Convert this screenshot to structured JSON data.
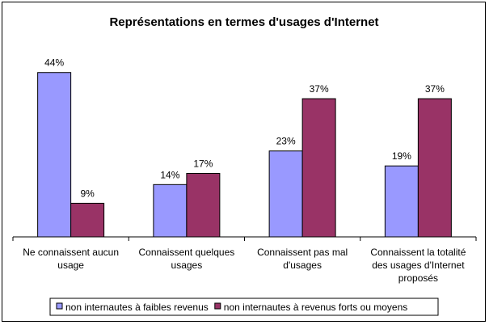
{
  "chart_data": {
    "type": "bar",
    "title": "Représentations en termes d'usages d'Internet",
    "xlabel": "",
    "ylabel": "",
    "ylim": [
      0,
      50
    ],
    "grid": false,
    "legend_position": "bottom",
    "value_format": "percent",
    "categories": [
      [
        "Ne connaissent aucun",
        "usage"
      ],
      [
        "Connaissent quelques",
        "usages"
      ],
      [
        "Connaissent pas mal",
        "d'usages"
      ],
      [
        "Connaissent la totalité",
        "des usages d'Internet",
        "proposés"
      ]
    ],
    "series": [
      {
        "name": "non internautes à faibles revenus",
        "color": "#9999ff",
        "values": [
          44,
          14,
          23,
          19
        ]
      },
      {
        "name": "non internautes à revenus forts ou moyens",
        "color": "#993366",
        "values": [
          9,
          17,
          37,
          37
        ]
      }
    ]
  }
}
